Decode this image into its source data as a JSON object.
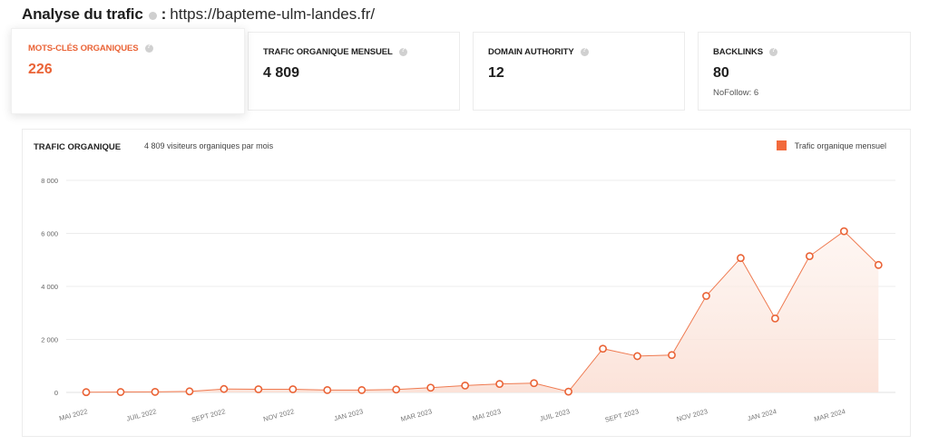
{
  "header": {
    "title": "Analyse du trafic",
    "separator": ":",
    "url": "https://bapteme-ulm-landes.fr/"
  },
  "cards": [
    {
      "label": "MOTS-CLÉS ORGANIQUES",
      "value": "226",
      "sub": "",
      "active": true
    },
    {
      "label": "TRAFIC ORGANIQUE MENSUEL",
      "value": "4 809",
      "sub": "",
      "active": false
    },
    {
      "label": "DOMAIN AUTHORITY",
      "value": "12",
      "sub": "",
      "active": false
    },
    {
      "label": "BACKLINKS",
      "value": "80",
      "sub": "NoFollow: 6",
      "active": false
    }
  ],
  "chart_panel": {
    "title": "TRAFIC ORGANIQUE",
    "subtitle": "4 809 visiteurs organiques par mois",
    "legend": "Trafic organique mensuel"
  },
  "colors": {
    "accent": "#ea6336",
    "line": "#ef7a50",
    "fill": "#fbe1d7",
    "grid": "#ececec"
  },
  "chart_data": {
    "type": "area",
    "title": "TRAFIC ORGANIQUE",
    "subtitle": "4 809 visiteurs organiques par mois",
    "xlabel": "",
    "ylabel": "",
    "ylim": [
      0,
      8000
    ],
    "yticks": [
      0,
      2000,
      4000,
      6000,
      8000
    ],
    "ytick_labels": [
      "0",
      "2 000",
      "4 000",
      "6 000",
      "8 000"
    ],
    "grid": true,
    "legend_position": "top-right",
    "x": [
      "MAI 2022",
      "JUIN 2022",
      "JUIL 2022",
      "AOÛT 2022",
      "SEPT 2022",
      "OCT 2022",
      "NOV 2022",
      "DÉC 2022",
      "JAN 2023",
      "FÉV 2023",
      "MAR 2023",
      "AVR 2023",
      "MAI 2023",
      "JUIN 2023",
      "JUIL 2023",
      "AOÛT 2023",
      "SEPT 2023",
      "OCT 2023",
      "NOV 2023",
      "DÉC 2023",
      "JAN 2024",
      "FÉV 2024",
      "MAR 2024",
      "AVR 2024"
    ],
    "xtick_labels": [
      "MAI 2022",
      "JUIL 2022",
      "SEPT 2022",
      "NOV 2022",
      "JAN 2023",
      "MAR 2023",
      "MAI 2023",
      "JUIL 2023",
      "SEPT 2023",
      "NOV 2023",
      "JAN 2024",
      "MAR 2024"
    ],
    "series": [
      {
        "name": "Trafic organique mensuel",
        "values": [
          10,
          15,
          20,
          40,
          130,
          120,
          120,
          90,
          90,
          110,
          180,
          260,
          320,
          350,
          30,
          1650,
          1370,
          1410,
          3640,
          5070,
          2790,
          5140,
          6080,
          4809
        ]
      }
    ]
  }
}
